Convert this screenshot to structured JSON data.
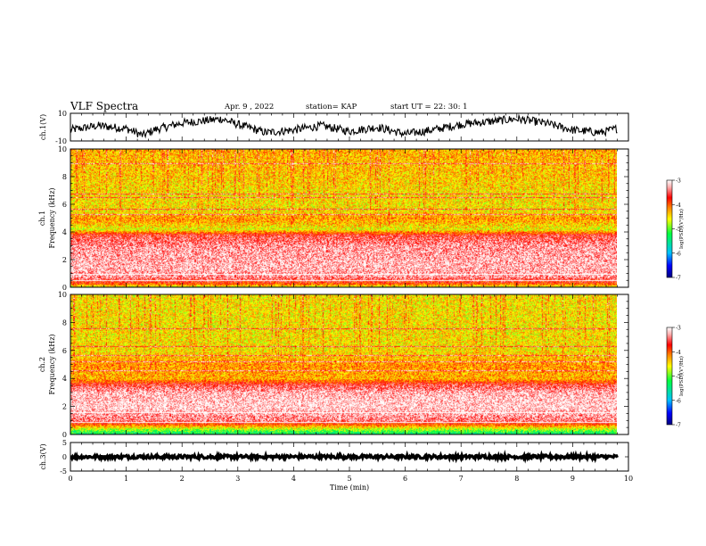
{
  "header": {
    "title": "VLF Spectra",
    "date": "Apr. 9 , 2022",
    "station": "station= KAP",
    "start": "start UT = 22: 30: 1"
  },
  "colors": {
    "background": "#ffffff",
    "axis": "#000000",
    "trace": "#000000",
    "colorbar_stops": [
      "#000080",
      "#0000ff",
      "#00c0ff",
      "#00ff40",
      "#ffff00",
      "#ff8000",
      "#ff0000",
      "#ffb0b0",
      "#ffffff"
    ]
  },
  "chart_data": [
    {
      "type": "line",
      "panel": "ch1-waveform",
      "ylabel": "ch.1(V)",
      "ylim": [
        -10,
        10
      ],
      "yticks": [
        {
          "value": 10,
          "label": "10"
        },
        {
          "value": -10,
          "label": "-10"
        }
      ],
      "xlim": [
        0,
        10
      ],
      "x_end": 9.8,
      "waveform": {
        "x": [
          0,
          0.5,
          1.0,
          1.3,
          1.5,
          2.0,
          2.5,
          2.7,
          3.0,
          3.5,
          4.0,
          4.5,
          5.0,
          5.5,
          6.0,
          6.5,
          7.0,
          7.5,
          8.0,
          8.5,
          9.0,
          9.5,
          9.8
        ],
        "y": [
          -2,
          1,
          -1,
          -6,
          -2,
          3,
          5,
          6,
          2,
          -4,
          -2,
          1,
          -3,
          0,
          -5,
          -2,
          2,
          4,
          6,
          3,
          -2,
          -4,
          -1
        ],
        "noise_amplitude": 3
      }
    },
    {
      "type": "heatmap",
      "panel": "ch1-spectrogram",
      "ylabel": "ch.1 Frequency (kHz)",
      "ylim": [
        0,
        10
      ],
      "yticks": [
        0,
        2,
        4,
        6,
        8,
        10
      ],
      "xlim": [
        0,
        10
      ],
      "x_end": 9.8,
      "colorbar": {
        "label": "log(PSD)(V²/Hz)",
        "range": [
          -7,
          -3
        ],
        "ticks": [
          -3,
          -4,
          -5,
          -6,
          -7
        ]
      },
      "intensity_profile": {
        "freq_khz": [
          0,
          0.3,
          0.8,
          1.5,
          3.0,
          3.8,
          4.2,
          5.0,
          5.5,
          6.8,
          8.0,
          10
        ],
        "log_psd": [
          -4.8,
          -3.9,
          -3.3,
          -3.2,
          -3.3,
          -3.6,
          -4.6,
          -4.2,
          -4.5,
          -4.5,
          -4.4,
          -4.3
        ]
      },
      "lines_khz": [
        0.5,
        1.0,
        5.3,
        5.7,
        6.5,
        6.8,
        9.0
      ]
    },
    {
      "type": "heatmap",
      "panel": "ch2-spectrogram",
      "ylabel": "ch.2 Frequency (kHz)",
      "ylim": [
        0,
        10
      ],
      "yticks": [
        0,
        2,
        4,
        6,
        8,
        10
      ],
      "xlim": [
        0,
        10
      ],
      "x_end": 9.8,
      "colorbar": {
        "label": "log(PSD)(V²/Hz)",
        "range": [
          -7,
          -3
        ],
        "ticks": [
          -3,
          -4,
          -5,
          -6,
          -7
        ]
      },
      "intensity_profile": {
        "freq_khz": [
          0,
          0.3,
          0.6,
          1.0,
          2.0,
          3.0,
          3.6,
          4.0,
          5.0,
          6.0,
          8.0,
          10
        ],
        "log_psd": [
          -5.5,
          -5.0,
          -4.3,
          -3.4,
          -3.1,
          -3.2,
          -3.6,
          -4.3,
          -4.2,
          -4.5,
          -4.5,
          -4.5
        ]
      },
      "lines_khz": [
        0.9,
        1.6,
        4.6,
        5.2,
        5.7,
        6.3,
        7.6
      ]
    },
    {
      "type": "line",
      "panel": "ch3-waveform",
      "ylabel": "ch.3(V)",
      "ylim": [
        -5,
        5
      ],
      "yticks": [
        {
          "value": 5,
          "label": "5"
        },
        {
          "value": 0,
          "label": "0"
        },
        {
          "value": -5,
          "label": "-5"
        }
      ],
      "xlim": [
        0,
        10
      ],
      "x_end": 9.8,
      "waveform": {
        "x": [
          0,
          9.8
        ],
        "y": [
          0,
          0
        ],
        "noise_amplitude": 0.6
      },
      "xlabel": "Time (min)",
      "xticks": [
        0,
        1,
        2,
        3,
        4,
        5,
        6,
        7,
        8,
        9,
        10
      ]
    }
  ]
}
